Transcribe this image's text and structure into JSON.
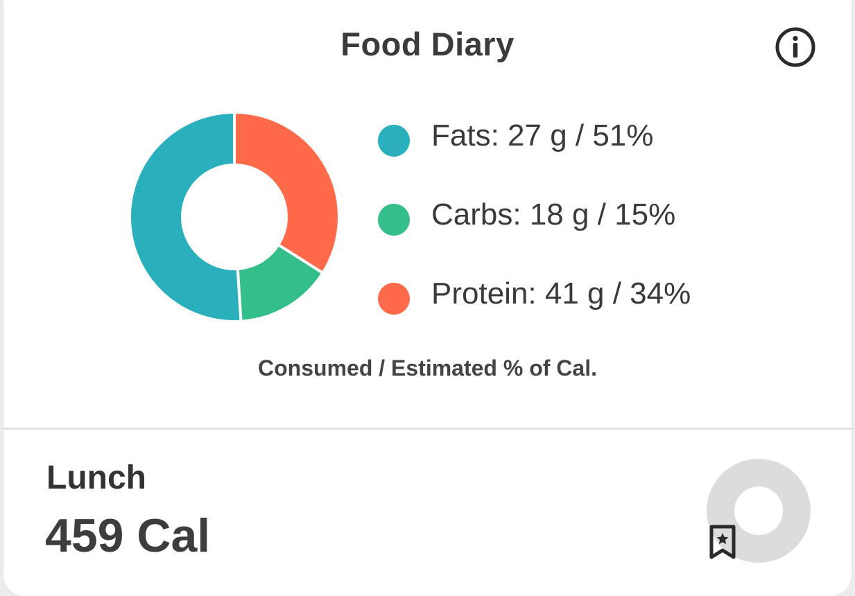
{
  "header": {
    "title": "Food Diary",
    "info_icon": "info-icon"
  },
  "chart_data": {
    "type": "pie",
    "style": "donut",
    "categories": [
      "Fats",
      "Carbs",
      "Protein"
    ],
    "values": [
      51,
      15,
      34
    ],
    "grams": [
      27,
      18,
      41
    ],
    "colors": [
      "#2AB0BC",
      "#33BE8A",
      "#FF6B4A"
    ],
    "legend_placement": "right",
    "caption": "Consumed / Estimated % of Cal."
  },
  "legend": [
    {
      "label": "Fats: 27 g / 51%",
      "color": "#2AB0BC"
    },
    {
      "label": "Carbs: 18 g / 15%",
      "color": "#33BE8A"
    },
    {
      "label": "Protein: 41 g / 34%",
      "color": "#FF6B4A"
    }
  ],
  "meal": {
    "name": "Lunch",
    "calories": "459 Cal",
    "ring_color": "#DCDCDC",
    "bookmark_icon": "bookmark-star-icon"
  }
}
